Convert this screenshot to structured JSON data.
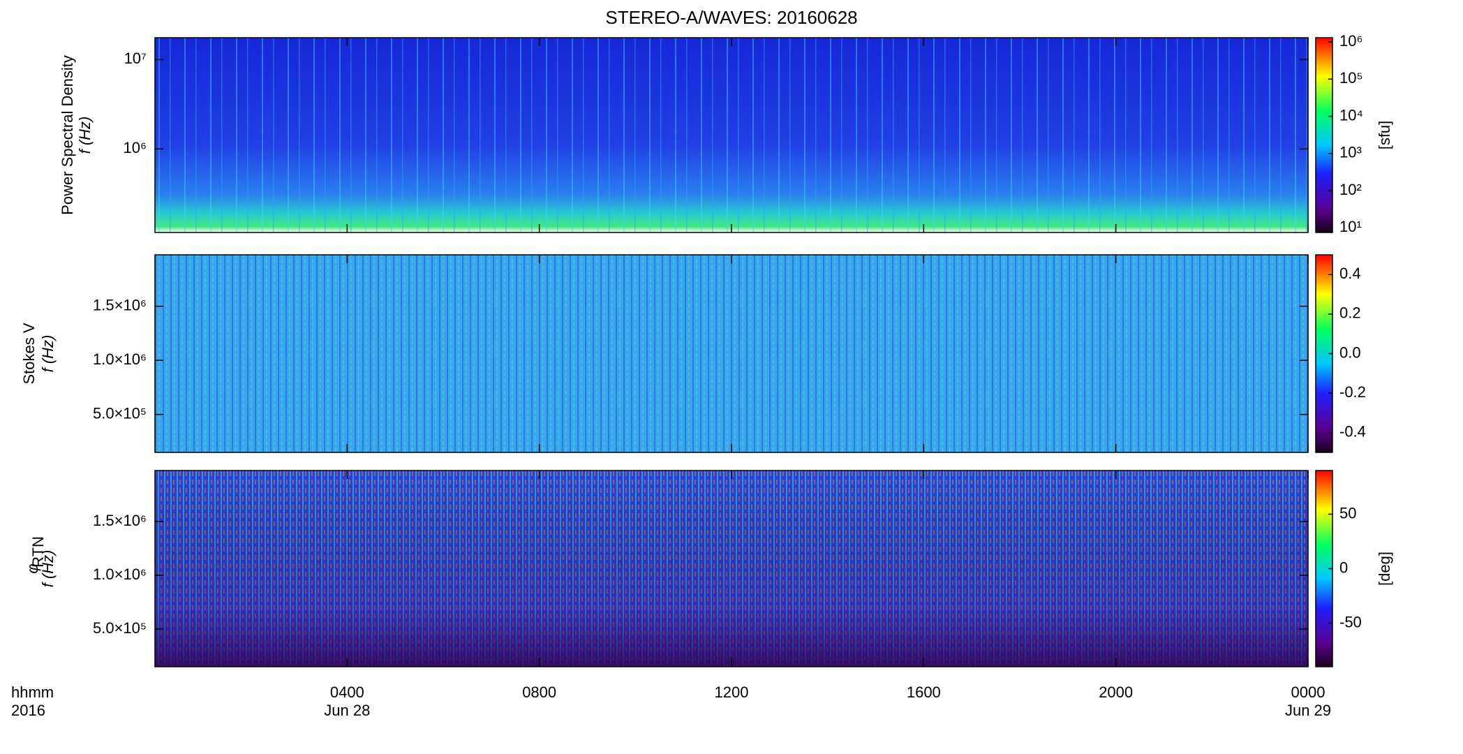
{
  "chart_data": {
    "type": "spectrogram",
    "title": "STEREO-A/WAVES: 20160628",
    "xlim": [
      0,
      24
    ],
    "xticks": [
      {
        "value": 4,
        "label": "0400"
      },
      {
        "value": 8,
        "label": "0800"
      },
      {
        "value": 12,
        "label": "1200"
      },
      {
        "value": 16,
        "label": "1600"
      },
      {
        "value": 20,
        "label": "2000"
      },
      {
        "value": 24,
        "label": "0000"
      }
    ],
    "date_labels": [
      {
        "value": 4,
        "label": "Jun 28"
      },
      {
        "value": 24,
        "label": "Jun 29"
      }
    ],
    "x_format_label": "hhmm",
    "year_label": "2016",
    "panels": [
      {
        "ylabel": [
          "Power Spectral Density",
          "f (Hz)"
        ],
        "ylog": true,
        "ylim": [
          116000,
          17600000
        ],
        "yticks": [
          {
            "value": 10000000,
            "label": "10⁷"
          },
          {
            "value": 1000000,
            "label": "10⁶"
          }
        ],
        "clog": true,
        "clim": [
          7.5,
          1300000
        ],
        "cticks": [
          {
            "value": 1000000,
            "label": "10⁶"
          },
          {
            "value": 100000,
            "label": "10⁵"
          },
          {
            "value": 10000,
            "label": "10⁴"
          },
          {
            "value": 1000,
            "label": "10³"
          },
          {
            "value": 100,
            "label": "10²"
          },
          {
            "value": 10,
            "label": "10¹"
          }
        ],
        "clabel": "[sfu]"
      },
      {
        "ylabel": [
          "Stokes V",
          "f (Hz)"
        ],
        "ylog": false,
        "ylim": [
          149000,
          1975000
        ],
        "yticks": [
          {
            "value": 1500000,
            "label": "1.5×10⁶"
          },
          {
            "value": 1000000,
            "label": "1.0×10⁶"
          },
          {
            "value": 500000,
            "label": "5.0×10⁵"
          }
        ],
        "clog": false,
        "clim": [
          -0.5,
          0.5
        ],
        "cticks": [
          0.4,
          0.2,
          {
            "value": 0,
            "label": "0.0"
          },
          -0.2,
          -0.4
        ]
      },
      {
        "ylabel": [
          "φ",
          "f (Hz)"
        ],
        "ylabel_sub": "RTN",
        "ylog": false,
        "ylim": [
          149000,
          1975000
        ],
        "yticks": [
          {
            "value": 1500000,
            "label": "1.5×10⁶"
          },
          {
            "value": 1000000,
            "label": "1.0×10⁶"
          },
          {
            "value": 500000,
            "label": "5.0×10⁵"
          }
        ],
        "clog": false,
        "clim": [
          -90,
          90
        ],
        "cticks": [
          50,
          0,
          -50
        ],
        "clabel": "[deg]"
      }
    ]
  }
}
